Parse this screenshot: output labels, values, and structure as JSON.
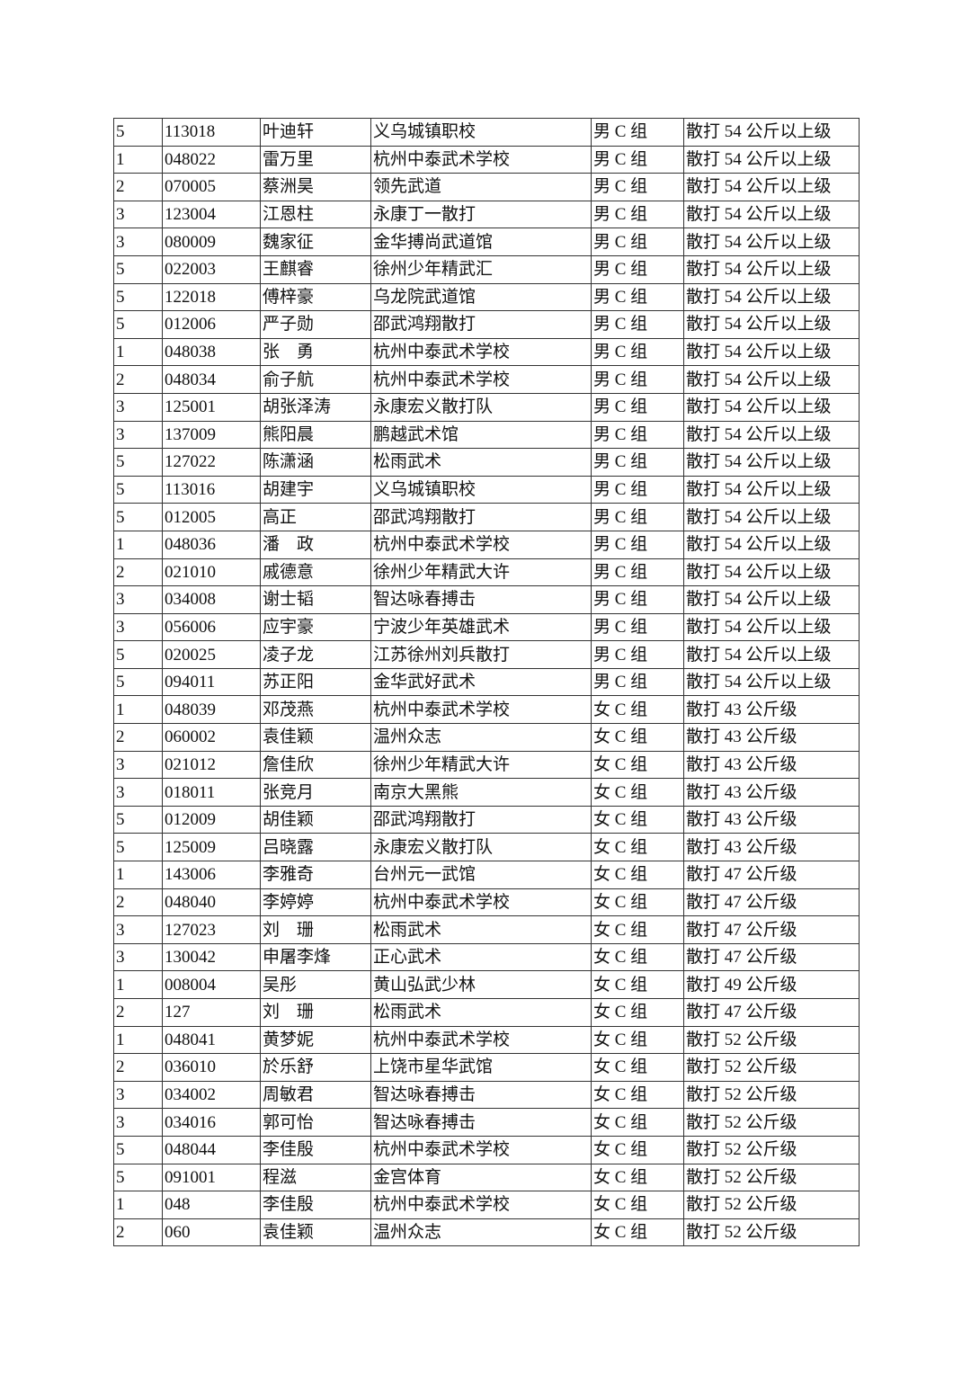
{
  "table": {
    "rows": [
      [
        "5",
        "113018",
        "叶迪轩",
        "义乌城镇职校",
        "男 C 组",
        "散打 54 公斤以上级"
      ],
      [
        "1",
        "048022",
        "雷万里",
        "杭州中泰武术学校",
        "男 C 组",
        "散打 54 公斤以上级"
      ],
      [
        "2",
        "070005",
        "蔡洲昊",
        "领先武道",
        "男 C 组",
        "散打 54 公斤以上级"
      ],
      [
        "3",
        "123004",
        "江恩柱",
        "永康丁一散打",
        "男 C 组",
        "散打 54 公斤以上级"
      ],
      [
        "3",
        "080009",
        "魏家征",
        "金华搏尚武道馆",
        "男 C 组",
        "散打 54 公斤以上级"
      ],
      [
        "5",
        "022003",
        "王麒睿",
        "徐州少年精武汇",
        "男 C 组",
        "散打 54 公斤以上级"
      ],
      [
        "5",
        "122018",
        "傅梓豪",
        "乌龙院武道馆",
        "男 C 组",
        "散打 54 公斤以上级"
      ],
      [
        "5",
        "012006",
        "严子勋",
        "邵武鸿翔散打",
        "男 C 组",
        "散打 54 公斤以上级"
      ],
      [
        "1",
        "048038",
        "张　勇",
        "杭州中泰武术学校",
        "男 C 组",
        "散打 54 公斤以上级"
      ],
      [
        "2",
        "048034",
        "俞子航",
        "杭州中泰武术学校",
        "男 C 组",
        "散打 54 公斤以上级"
      ],
      [
        "3",
        "125001",
        "胡张泽涛",
        "永康宏义散打队",
        "男 C 组",
        "散打 54 公斤以上级"
      ],
      [
        "3",
        "137009",
        "熊阳晨",
        "鹏越武术馆",
        "男 C 组",
        "散打 54 公斤以上级"
      ],
      [
        "5",
        "127022",
        "陈潇涵",
        "松雨武术",
        "男 C 组",
        "散打 54 公斤以上级"
      ],
      [
        "5",
        "113016",
        "胡建宇",
        "义乌城镇职校",
        "男 C 组",
        "散打 54 公斤以上级"
      ],
      [
        "5",
        "012005",
        "高正",
        "邵武鸿翔散打",
        "男 C 组",
        "散打 54 公斤以上级"
      ],
      [
        "1",
        "048036",
        "潘　政",
        "杭州中泰武术学校",
        "男 C 组",
        "散打 54 公斤以上级"
      ],
      [
        "2",
        "021010",
        "戚德意",
        "徐州少年精武大许",
        "男 C 组",
        "散打 54 公斤以上级"
      ],
      [
        "3",
        "034008",
        "谢士韬",
        "智达咏春搏击",
        "男 C 组",
        "散打 54 公斤以上级"
      ],
      [
        "3",
        "056006",
        "应宇豪",
        "宁波少年英雄武术",
        "男 C 组",
        "散打 54 公斤以上级"
      ],
      [
        "5",
        "020025",
        "凌子龙",
        "江苏徐州刘兵散打",
        "男 C 组",
        "散打 54 公斤以上级"
      ],
      [
        "5",
        "094011",
        "苏正阳",
        "金华武好武术",
        "男 C 组",
        "散打 54 公斤以上级"
      ],
      [
        "1",
        "048039",
        "邓茂燕",
        "杭州中泰武术学校",
        "女 C 组",
        "散打 43 公斤级"
      ],
      [
        "2",
        "060002",
        "袁佳颖",
        "温州众志",
        "女 C 组",
        "散打 43 公斤级"
      ],
      [
        "3",
        "021012",
        "詹佳欣",
        "徐州少年精武大许",
        "女 C 组",
        "散打 43 公斤级"
      ],
      [
        "3",
        "018011",
        "张竞月",
        "南京大黑熊",
        "女 C 组",
        "散打 43 公斤级"
      ],
      [
        "5",
        "012009",
        "胡佳颖",
        "邵武鸿翔散打",
        "女 C 组",
        "散打 43 公斤级"
      ],
      [
        "5",
        "125009",
        "吕晓露",
        "永康宏义散打队",
        "女 C 组",
        "散打 43 公斤级"
      ],
      [
        "1",
        "143006",
        "李雅奇",
        "台州元一武馆",
        "女 C 组",
        "散打 47 公斤级"
      ],
      [
        "2",
        "048040",
        "李婷婷",
        "杭州中泰武术学校",
        "女 C 组",
        "散打 47 公斤级"
      ],
      [
        "3",
        "127023",
        "刘　珊",
        "松雨武术",
        "女 C 组",
        "散打 47 公斤级"
      ],
      [
        "3",
        "130042",
        "申屠李烽",
        "正心武术",
        "女 C 组",
        "散打 47 公斤级"
      ],
      [
        "1",
        "008004",
        "吴彤",
        "黄山弘武少林",
        "女 C 组",
        "散打 49 公斤级"
      ],
      [
        "2",
        "127",
        "刘　珊",
        "松雨武术",
        "女 C 组",
        "散打 47 公斤级"
      ],
      [
        "1",
        "048041",
        "黄梦妮",
        "杭州中泰武术学校",
        "女 C 组",
        "散打 52 公斤级"
      ],
      [
        "2",
        "036010",
        "於乐舒",
        "上饶市星华武馆",
        "女 C 组",
        "散打 52 公斤级"
      ],
      [
        "3",
        "034002",
        "周敏君",
        "智达咏春搏击",
        "女 C 组",
        "散打 52 公斤级"
      ],
      [
        "3",
        "034016",
        "郭可怡",
        "智达咏春搏击",
        "女 C 组",
        "散打 52 公斤级"
      ],
      [
        "5",
        "048044",
        "李佳殷",
        "杭州中泰武术学校",
        "女 C 组",
        "散打 52 公斤级"
      ],
      [
        "5",
        "091001",
        "程滋",
        "金宫体育",
        "女 C 组",
        "散打 52 公斤级"
      ],
      [
        "1",
        "048",
        "李佳殷",
        "杭州中泰武术学校",
        "女 C 组",
        "散打 52 公斤级"
      ],
      [
        "2",
        "060",
        "袁佳颖",
        "温州众志",
        "女 C 组",
        "散打 52 公斤级"
      ]
    ]
  }
}
